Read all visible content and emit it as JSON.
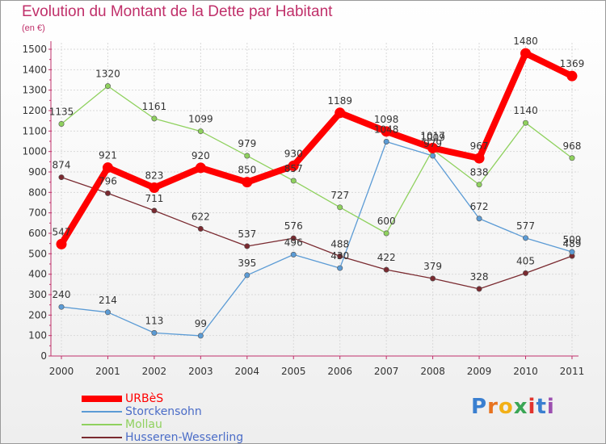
{
  "chart_data": {
    "type": "line",
    "title": "Evolution du Montant de la Dette par Habitant",
    "subtitle": "(en €)",
    "categories": [
      "2000",
      "2001",
      "2002",
      "2003",
      "2004",
      "2005",
      "2006",
      "2007",
      "2008",
      "2009",
      "2010",
      "2011"
    ],
    "ylim": [
      0,
      1500
    ],
    "yticks": [
      0,
      100,
      200,
      300,
      400,
      500,
      600,
      700,
      800,
      900,
      1000,
      1100,
      1200,
      1300,
      1400,
      1500
    ],
    "grid": true,
    "legend_position": "bottom-left",
    "series": [
      {
        "name": "URBèS",
        "color": "#ff0000",
        "label_color": "#ff0000",
        "values": [
          547,
          921,
          823,
          920,
          850,
          930,
          1189,
          1098,
          1017,
          967,
          1480,
          1369
        ]
      },
      {
        "name": "Storckensohn",
        "color": "#5b9bd5",
        "label_color": "#4a6cc7",
        "values": [
          240,
          214,
          113,
          99,
          395,
          496,
          430,
          1048,
          979,
          672,
          577,
          509
        ]
      },
      {
        "name": "Mollau",
        "color": "#8fd15e",
        "label_color": "#8fd15e",
        "values": [
          1135,
          1320,
          1161,
          1099,
          979,
          857,
          727,
          600,
          1009,
          838,
          1140,
          968
        ]
      },
      {
        "name": "Husseren-Wesserling",
        "color": "#7a2a30",
        "label_color": "#4a6cc7",
        "values": [
          874,
          796,
          711,
          622,
          537,
          576,
          488,
          422,
          379,
          328,
          405,
          489
        ]
      }
    ]
  },
  "brand": {
    "text": "Proxiti",
    "letters": [
      "P",
      "r",
      "o",
      "x",
      "i",
      "t",
      "i"
    ],
    "colors": [
      "#3a7fd0",
      "#e8731f",
      "#f2b017",
      "#3aa655",
      "#e2342d",
      "#3a7fd0",
      "#9c4fb0"
    ]
  }
}
